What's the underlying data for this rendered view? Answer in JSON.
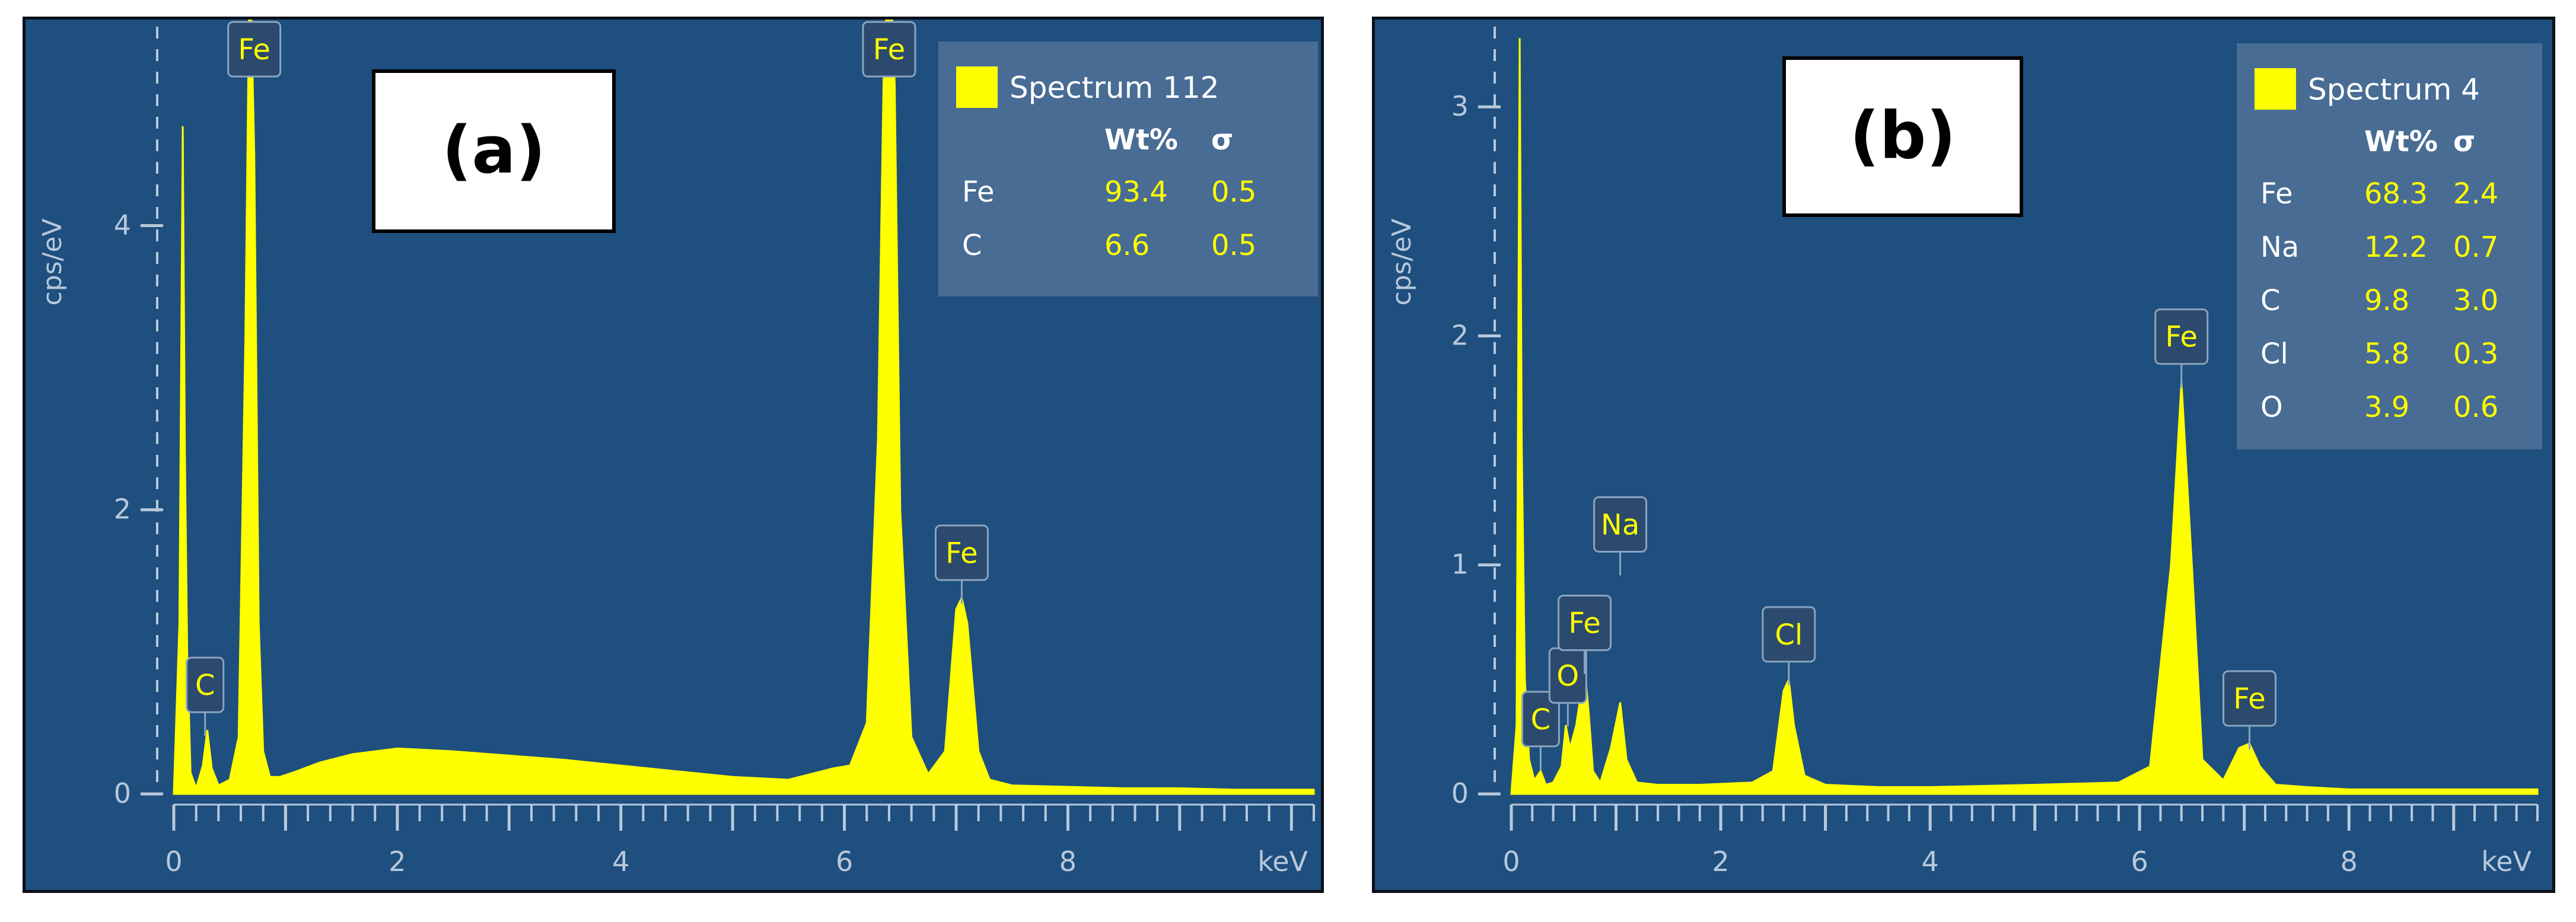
{
  "colors": {
    "background": "#1e4f7e",
    "spectrum": "#ffff00",
    "axis": "#b8c8dc",
    "legend_bg": "#4c6f96",
    "label_box": "#2b4a6d"
  },
  "chart_data": [
    {
      "type": "area",
      "panel_label": "(a)",
      "xlabel": "keV",
      "ylabel": "cps/eV",
      "xlim": [
        0,
        10.2
      ],
      "ylim": [
        0,
        5.4
      ],
      "xticks": [
        "0",
        "2",
        "4",
        "6",
        "8"
      ],
      "yticks": [
        "0",
        "2",
        "4"
      ],
      "series": [
        {
          "name": "Spectrum 112",
          "x": [
            0.0,
            0.05,
            0.08,
            0.1,
            0.12,
            0.15,
            0.2,
            0.26,
            0.3,
            0.34,
            0.4,
            0.5,
            0.58,
            0.64,
            0.68,
            0.72,
            0.76,
            0.8,
            0.86,
            0.95,
            1.1,
            1.3,
            1.6,
            2.0,
            2.5,
            3.0,
            3.5,
            4.0,
            4.5,
            5.0,
            5.5,
            5.9,
            6.05,
            6.2,
            6.3,
            6.35,
            6.4,
            6.45,
            6.5,
            6.6,
            6.75,
            6.9,
            7.0,
            7.05,
            7.1,
            7.2,
            7.3,
            7.5,
            8.0,
            8.5,
            9.0,
            9.5,
            10.2
          ],
          "y": [
            0.0,
            1.2,
            4.7,
            2.4,
            1.0,
            0.15,
            0.04,
            0.2,
            0.45,
            0.18,
            0.06,
            0.1,
            0.4,
            3.2,
            6.0,
            4.5,
            1.2,
            0.3,
            0.12,
            0.12,
            0.16,
            0.22,
            0.28,
            0.32,
            0.3,
            0.27,
            0.24,
            0.2,
            0.16,
            0.12,
            0.1,
            0.18,
            0.2,
            0.5,
            2.5,
            5.0,
            6.0,
            5.0,
            2.0,
            0.4,
            0.14,
            0.3,
            1.3,
            1.38,
            1.2,
            0.3,
            0.1,
            0.06,
            0.05,
            0.04,
            0.04,
            0.03,
            0.03
          ]
        }
      ],
      "peak_labels": [
        {
          "text": "C",
          "x": 0.28,
          "y": 0.45
        },
        {
          "text": "Fe",
          "x": 0.72,
          "y": 5.4
        },
        {
          "text": "Fe",
          "x": 6.4,
          "y": 5.4
        },
        {
          "text": "Fe",
          "x": 7.05,
          "y": 1.38
        }
      ],
      "legend": {
        "position": "top-right",
        "title": "Spectrum 112",
        "headers": [
          "Wt%",
          "σ"
        ],
        "rows": [
          {
            "element": "Fe",
            "wt": "93.4",
            "sigma": "0.5"
          },
          {
            "element": "C",
            "wt": "6.6",
            "sigma": "0.5"
          }
        ]
      }
    },
    {
      "type": "area",
      "panel_label": "(b)",
      "xlabel": "keV",
      "ylabel": "cps/eV",
      "xlim": [
        0,
        9.8
      ],
      "ylim": [
        0,
        3.35
      ],
      "xticks": [
        "0",
        "2",
        "4",
        "6",
        "8"
      ],
      "yticks": [
        "0",
        "1",
        "2",
        "3"
      ],
      "series": [
        {
          "name": "Spectrum 4",
          "x": [
            0.0,
            0.05,
            0.08,
            0.1,
            0.13,
            0.17,
            0.22,
            0.28,
            0.33,
            0.4,
            0.48,
            0.52,
            0.56,
            0.62,
            0.7,
            0.74,
            0.78,
            0.85,
            0.95,
            1.04,
            1.1,
            1.2,
            1.4,
            1.8,
            2.3,
            2.5,
            2.6,
            2.65,
            2.7,
            2.8,
            3.0,
            3.5,
            4.0,
            5.0,
            5.8,
            6.1,
            6.3,
            6.4,
            6.5,
            6.6,
            6.8,
            6.95,
            7.05,
            7.15,
            7.3,
            7.6,
            8.0,
            9.0,
            9.8
          ],
          "y": [
            0.0,
            0.3,
            3.3,
            1.5,
            0.5,
            0.15,
            0.06,
            0.1,
            0.04,
            0.05,
            0.12,
            0.3,
            0.2,
            0.3,
            0.55,
            0.35,
            0.1,
            0.05,
            0.2,
            0.4,
            0.15,
            0.05,
            0.04,
            0.04,
            0.05,
            0.1,
            0.45,
            0.5,
            0.3,
            0.08,
            0.04,
            0.03,
            0.03,
            0.04,
            0.05,
            0.12,
            1.0,
            1.8,
            1.0,
            0.15,
            0.06,
            0.2,
            0.22,
            0.12,
            0.04,
            0.03,
            0.02,
            0.02,
            0.02
          ]
        }
      ],
      "peak_labels": [
        {
          "text": "C",
          "x": 0.28,
          "y": 0.13
        },
        {
          "text": "O",
          "x": 0.54,
          "y": 0.32
        },
        {
          "text": "Fe",
          "x": 0.7,
          "y": 0.55
        },
        {
          "text": "Na",
          "x": 1.04,
          "y": 0.98
        },
        {
          "text": "Cl",
          "x": 2.65,
          "y": 0.5
        },
        {
          "text": "Fe",
          "x": 6.4,
          "y": 1.8
        },
        {
          "text": "Fe",
          "x": 7.05,
          "y": 0.22
        }
      ],
      "legend": {
        "position": "top-right",
        "title": "Spectrum 4",
        "headers": [
          "Wt%",
          "σ"
        ],
        "rows": [
          {
            "element": "Fe",
            "wt": "68.3",
            "sigma": "2.4"
          },
          {
            "element": "Na",
            "wt": "12.2",
            "sigma": "0.7"
          },
          {
            "element": "C",
            "wt": "9.8",
            "sigma": "3.0"
          },
          {
            "element": "Cl",
            "wt": "5.8",
            "sigma": "0.3"
          },
          {
            "element": "O",
            "wt": "3.9",
            "sigma": "0.6"
          }
        ]
      }
    }
  ]
}
